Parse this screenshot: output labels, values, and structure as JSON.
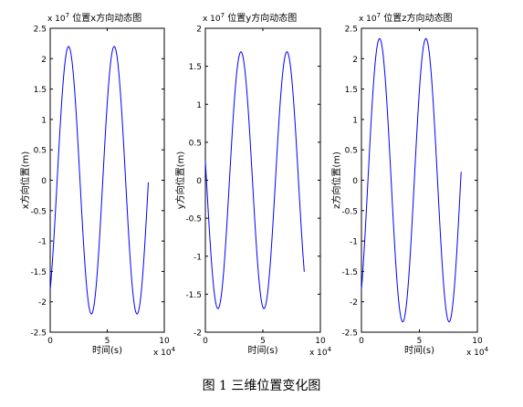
{
  "figure_caption": "图 1  三维位置变化图",
  "chart_data": [
    {
      "type": "line",
      "title": "位置x方向动态图",
      "xlabel": "时间(s)",
      "ylabel": "x方向位置(m)",
      "x_multiplier": "x 10",
      "x_exponent": "4",
      "y_multiplier": "x 10",
      "y_exponent": "7",
      "xlim": [
        0,
        10
      ],
      "ylim": [
        -2.5,
        2.5
      ],
      "xticks": [
        0,
        5,
        10
      ],
      "yticks": [
        -2.5,
        -2,
        -1.5,
        -1,
        -0.5,
        0,
        0.5,
        1,
        1.5,
        2,
        2.5
      ],
      "ytick_labels": [
        "-2.5",
        "-2",
        "-1.5",
        "-1",
        "-0.5",
        "0",
        "0.5",
        "1",
        "1.5",
        "2",
        "2.5"
      ],
      "grid": false,
      "line_color": "#0000ff",
      "series": [
        {
          "x_range": [
            0,
            8.6
          ],
          "amplitude": 2.2,
          "offset": 0,
          "period": 4.0,
          "phase_start": -1.8
        }
      ]
    },
    {
      "type": "line",
      "title": "位置y方向动态图",
      "xlabel": "时间(s)",
      "ylabel": "y方向位置(m)",
      "x_multiplier": "x 10",
      "x_exponent": "4",
      "y_multiplier": "x 10",
      "y_exponent": "7",
      "xlim": [
        0,
        10
      ],
      "ylim": [
        -2,
        2
      ],
      "xticks": [
        0,
        5,
        10
      ],
      "yticks": [
        -2,
        -1.5,
        -1,
        -0.5,
        0,
        0.5,
        1,
        1.5,
        2
      ],
      "ytick_labels": [
        "-2",
        "-1.5",
        "-1",
        "-0.5",
        "0",
        "0.5",
        "1",
        "1.5",
        "2"
      ],
      "grid": false,
      "line_color": "#0000ff",
      "series": [
        {
          "x_range": [
            0,
            8.6
          ],
          "amplitude": 1.69,
          "offset": 0,
          "period": 4.0,
          "phase_start": 0.25
        }
      ]
    },
    {
      "type": "line",
      "title": "位置z方向动态图",
      "xlabel": "时间(s)",
      "ylabel": "z方向位置(m)",
      "x_multiplier": "x 10",
      "x_exponent": "4",
      "y_multiplier": "x 10",
      "y_exponent": "7",
      "xlim": [
        0,
        10
      ],
      "ylim": [
        -2.5,
        2.5
      ],
      "xticks": [
        0,
        5,
        10
      ],
      "yticks": [
        -2.5,
        -2,
        -1.5,
        -1,
        -0.5,
        0,
        0.5,
        1,
        1.5,
        2,
        2.5
      ],
      "ytick_labels": [
        "-2.5",
        "-2",
        "-1.5",
        "-1",
        "-0.5",
        "0",
        "0.5",
        "1",
        "1.5",
        "2",
        "2.5"
      ],
      "grid": false,
      "line_color": "#0000ff",
      "series": [
        {
          "x_range": [
            0,
            8.6
          ],
          "amplitude": 2.33,
          "offset": 0,
          "period": 4.0,
          "phase_start": -1.8
        }
      ]
    }
  ]
}
